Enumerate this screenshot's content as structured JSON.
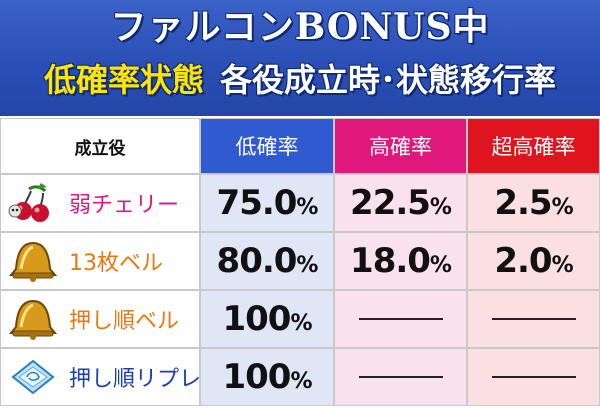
{
  "header": {
    "title_main": "ファルコンBONUS中",
    "title_state": "低確率状態",
    "title_desc": "各役成立時･状態移行率"
  },
  "colors": {
    "header_bg": "#2a4fb6",
    "title_yellow": "#ffe600",
    "low_header": "#2f5ad0",
    "high_header": "#e0187c",
    "super_header": "#e0141e",
    "cherry_text": "#e0187c",
    "bell_text": "#e87810",
    "replay_text": "#1b3fb0"
  },
  "table": {
    "headers": {
      "role": "成立役",
      "low": "低確率",
      "high": "高確率",
      "super": "超高確率"
    },
    "rows": [
      {
        "icon": "cherry-icon",
        "label": "弱チェリー",
        "color": "#e0187c",
        "low": "75.0",
        "high": "22.5",
        "super": "2.5"
      },
      {
        "icon": "bell-icon",
        "label": "13枚ベル",
        "color": "#e87810",
        "low": "80.0",
        "high": "18.0",
        "super": "2.0"
      },
      {
        "icon": "bell-icon",
        "label": "押し順ベル",
        "color": "#e87810",
        "low": "100",
        "high": "—",
        "super": "—"
      },
      {
        "icon": "replay-icon",
        "label": "押し順リプレイ",
        "color": "#1b3fb0",
        "low": "100",
        "high": "—",
        "super": "—"
      }
    ],
    "percent_sign": "%"
  }
}
